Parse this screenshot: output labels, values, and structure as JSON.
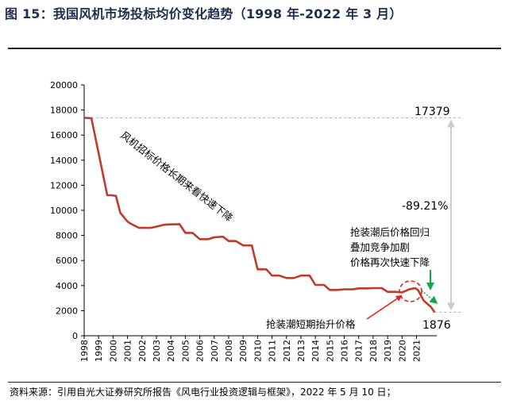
{
  "header": {
    "title": "图 15：我国风机市场投标均价变化趋势（1998 年-2022 年 3 月）"
  },
  "chart_data": {
    "type": "line",
    "title": "图 15：我国风机市场投标均价变化趋势（1998 年-2022 年 3 月）",
    "xlabel": "",
    "ylabel": "",
    "ylim": [
      0,
      20000
    ],
    "yticks": [
      0,
      2000,
      4000,
      6000,
      8000,
      10000,
      12000,
      14000,
      16000,
      18000,
      20000
    ],
    "xticks": [
      "1998",
      "1999",
      "2000",
      "2001",
      "2002",
      "2003",
      "2004",
      "2005",
      "2006",
      "2007",
      "2008",
      "2009",
      "2010",
      "2011",
      "2012",
      "2013",
      "2014",
      "2015",
      "2016",
      "2017",
      "2018",
      "2019",
      "2020",
      "2021"
    ],
    "xlim": [
      1998,
      2022.4
    ],
    "grid": false,
    "legend": "none",
    "series_color": "#c0392b",
    "series": [
      {
        "x": [
          1998.0,
          1998.5,
          1999.6,
          1999.9,
          2000.2,
          2000.5,
          2001.0,
          2001.2,
          2001.8,
          2002.6,
          2003.0,
          2003.5,
          2004.0,
          2004.6,
          2005.0,
          2005.5,
          2006.0,
          2006.6,
          2007.0,
          2007.6,
          2008.0,
          2008.5,
          2009.0,
          2009.6,
          2010.0,
          2010.6,
          2011.0,
          2011.5,
          2012.0,
          2012.5,
          2013.0,
          2013.6,
          2014.0,
          2014.6,
          2015.0,
          2015.5,
          2016.0,
          2016.6,
          2017.0,
          2017.6,
          2018.0,
          2018.6,
          2019.0,
          2019.6,
          2020.0,
          2020.5,
          2020.9,
          2021.1,
          2021.5,
          2022.0,
          2022.25
        ],
        "y": [
          17379,
          17350,
          11200,
          11200,
          11150,
          9800,
          9100,
          8950,
          8600,
          8600,
          8700,
          8850,
          8880,
          8900,
          8200,
          8200,
          7700,
          7700,
          7850,
          7900,
          7550,
          7550,
          7200,
          7200,
          5300,
          5300,
          4800,
          4800,
          4600,
          4600,
          4800,
          4800,
          4050,
          4050,
          3650,
          3650,
          3700,
          3700,
          3780,
          3780,
          3800,
          3800,
          3500,
          3500,
          3450,
          3700,
          3800,
          3650,
          2800,
          2300,
          1876
        ]
      }
    ],
    "annotations": {
      "trend_label": "风机招标价格长期来看快速下降",
      "peak_value": "17379",
      "drop_pct": "-89.21%",
      "recent_label_1": "抢装潮后价格回归",
      "recent_label_2": "叠加竞争加剧",
      "recent_label_3": "价格再次快速下降",
      "final_value": "1876",
      "rush_label": "抢装潮短期抬升价格"
    }
  },
  "footer": {
    "source": "资料来源：引用自光大证券研究所报告《风电行业投资逻辑与框架》，2022 年 5 月 10 日；"
  }
}
